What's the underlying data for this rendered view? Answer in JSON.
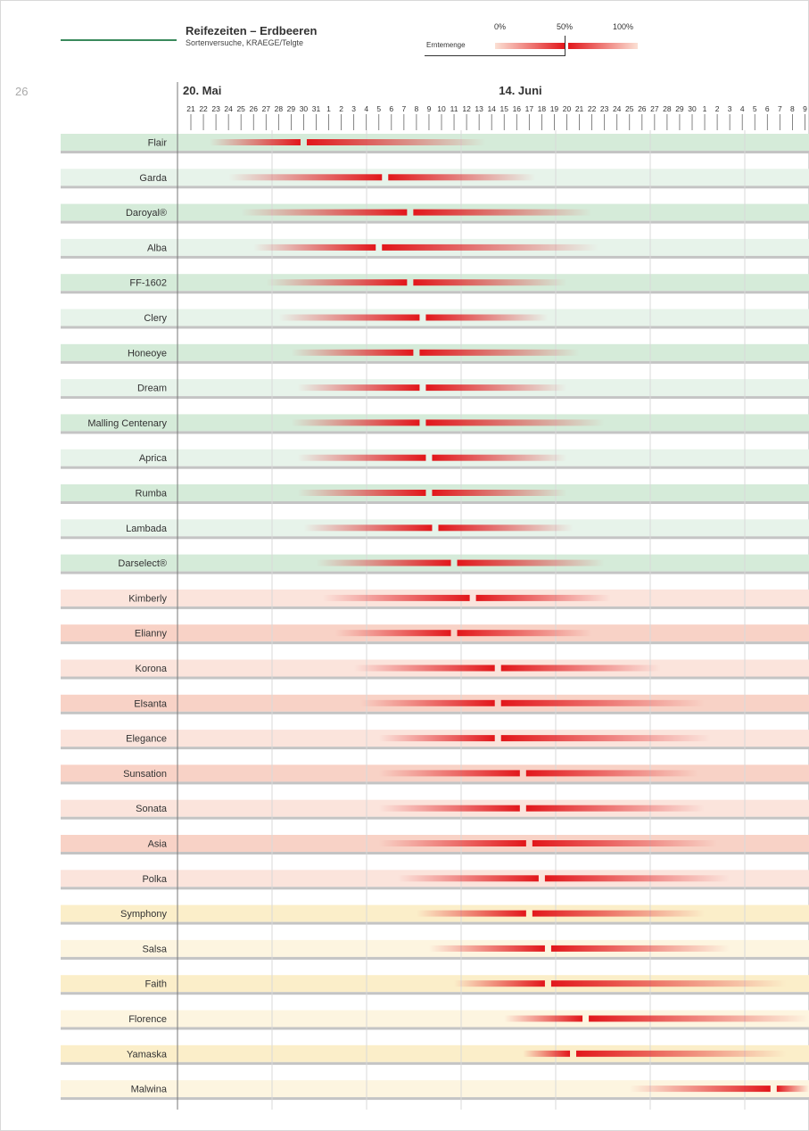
{
  "page_number": "26",
  "header": {
    "title": "Reifezeiten – Erdbeeren",
    "subtitle": "Sortenversuche, KRAEGE/Telgte"
  },
  "legend": {
    "label": "Erntemenge",
    "p0": "0%",
    "p50": "50%",
    "p100": "100%"
  },
  "colors": {
    "red": "#e2171b",
    "green_row": "#d5ebd9",
    "green_row_light": "#e7f3ea",
    "red_row": "#f8d2c6",
    "red_row_light": "#fbe4dc",
    "yellow_row": "#fbeec9",
    "yellow_row_light": "#fdf5e0"
  },
  "chart_data": {
    "type": "timeline",
    "title": "Reifezeiten – Erdbeeren",
    "month_labels": [
      {
        "text": "20. Mai",
        "day_index": 0
      },
      {
        "text": "14. Juni",
        "day_index": 25
      }
    ],
    "day_labels": [
      "21",
      "22",
      "23",
      "24",
      "25",
      "26",
      "27",
      "28",
      "29",
      "30",
      "31",
      "1",
      "2",
      "3",
      "4",
      "5",
      "6",
      "7",
      "8",
      "9",
      "10",
      "11",
      "12",
      "13",
      "14",
      "15",
      "16",
      "17",
      "18",
      "19",
      "20",
      "21",
      "22",
      "23",
      "24",
      "25",
      "26",
      "27",
      "28",
      "29",
      "30",
      "1",
      "2",
      "3",
      "4",
      "5",
      "6",
      "7",
      "8",
      "9"
    ],
    "x_unit": "days since 20. Mai",
    "series": [
      {
        "name": "Flair",
        "group": "green",
        "start": 1.5,
        "peak": 9,
        "end": 23.5
      },
      {
        "name": "Garda",
        "group": "green",
        "start": 3,
        "peak": 15.5,
        "end": 27.5
      },
      {
        "name": "Daroyal®",
        "group": "green",
        "start": 4,
        "peak": 17.5,
        "end": 32
      },
      {
        "name": "Alba",
        "group": "green",
        "start": 5,
        "peak": 15,
        "end": 32.5
      },
      {
        "name": "FF-1602",
        "group": "green",
        "start": 6,
        "peak": 17.5,
        "end": 30
      },
      {
        "name": "Clery",
        "group": "green",
        "start": 7,
        "peak": 18.5,
        "end": 28.5
      },
      {
        "name": "Honeoye",
        "group": "green",
        "start": 8,
        "peak": 18,
        "end": 31
      },
      {
        "name": "Dream",
        "group": "green",
        "start": 8.5,
        "peak": 18.5,
        "end": 30
      },
      {
        "name": "Malling Centenary",
        "group": "green",
        "start": 8,
        "peak": 18.5,
        "end": 33
      },
      {
        "name": "Aprica",
        "group": "green",
        "start": 8.5,
        "peak": 19,
        "end": 30
      },
      {
        "name": "Rumba",
        "group": "green",
        "start": 8.5,
        "peak": 19,
        "end": 30
      },
      {
        "name": "Lambada",
        "group": "green",
        "start": 9,
        "peak": 19.5,
        "end": 30.5
      },
      {
        "name": "Darselect®",
        "group": "green",
        "start": 10,
        "peak": 21,
        "end": 33
      },
      {
        "name": "Kimberly",
        "group": "red",
        "start": 10.5,
        "peak": 22.5,
        "end": 33.5
      },
      {
        "name": "Elianny",
        "group": "red",
        "start": 11.5,
        "peak": 21,
        "end": 32
      },
      {
        "name": "Korona",
        "group": "red",
        "start": 13,
        "peak": 24.5,
        "end": 37.5
      },
      {
        "name": "Elsanta",
        "group": "red",
        "start": 13.5,
        "peak": 24.5,
        "end": 41
      },
      {
        "name": "Elegance",
        "group": "red",
        "start": 15,
        "peak": 24.5,
        "end": 41.5
      },
      {
        "name": "Sunsation",
        "group": "red",
        "start": 15,
        "peak": 26.5,
        "end": 40.5
      },
      {
        "name": "Sonata",
        "group": "red",
        "start": 15,
        "peak": 26.5,
        "end": 41
      },
      {
        "name": "Asia",
        "group": "red",
        "start": 15,
        "peak": 27,
        "end": 42
      },
      {
        "name": "Polka",
        "group": "red",
        "start": 16.5,
        "peak": 28,
        "end": 43
      },
      {
        "name": "Symphony",
        "group": "yellow",
        "start": 18,
        "peak": 27,
        "end": 41
      },
      {
        "name": "Salsa",
        "group": "yellow",
        "start": 19,
        "peak": 28.5,
        "end": 43
      },
      {
        "name": "Faith",
        "group": "yellow",
        "start": 21,
        "peak": 28.5,
        "end": 47.5
      },
      {
        "name": "Florence",
        "group": "yellow",
        "start": 25,
        "peak": 31.5,
        "end": 50
      },
      {
        "name": "Yamaska",
        "group": "yellow",
        "start": 26.5,
        "peak": 30.5,
        "end": 47.5
      },
      {
        "name": "Malwina",
        "group": "yellow",
        "start": 35,
        "peak": 46.5,
        "end": 50
      }
    ]
  }
}
